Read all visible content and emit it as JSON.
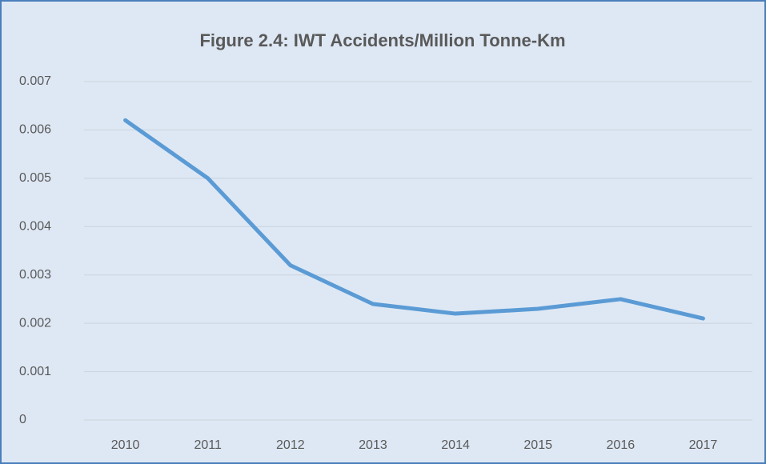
{
  "chart_data": {
    "type": "line",
    "title": "Figure 2.4:  IWT Accidents/Million Tonne-Km",
    "categories": [
      "2010",
      "2011",
      "2012",
      "2013",
      "2014",
      "2015",
      "2016",
      "2017"
    ],
    "series": [
      {
        "name": "IWT Accidents/Million Tonne-Km",
        "color": "#5b9bd5",
        "values": [
          0.0062,
          0.005,
          0.0032,
          0.0024,
          0.0022,
          0.0023,
          0.0025,
          0.0021
        ]
      }
    ],
    "ylim": [
      0,
      0.007
    ],
    "yticks": [
      0,
      0.001,
      0.002,
      0.003,
      0.004,
      0.005,
      0.006,
      0.007
    ],
    "grid": true
  }
}
